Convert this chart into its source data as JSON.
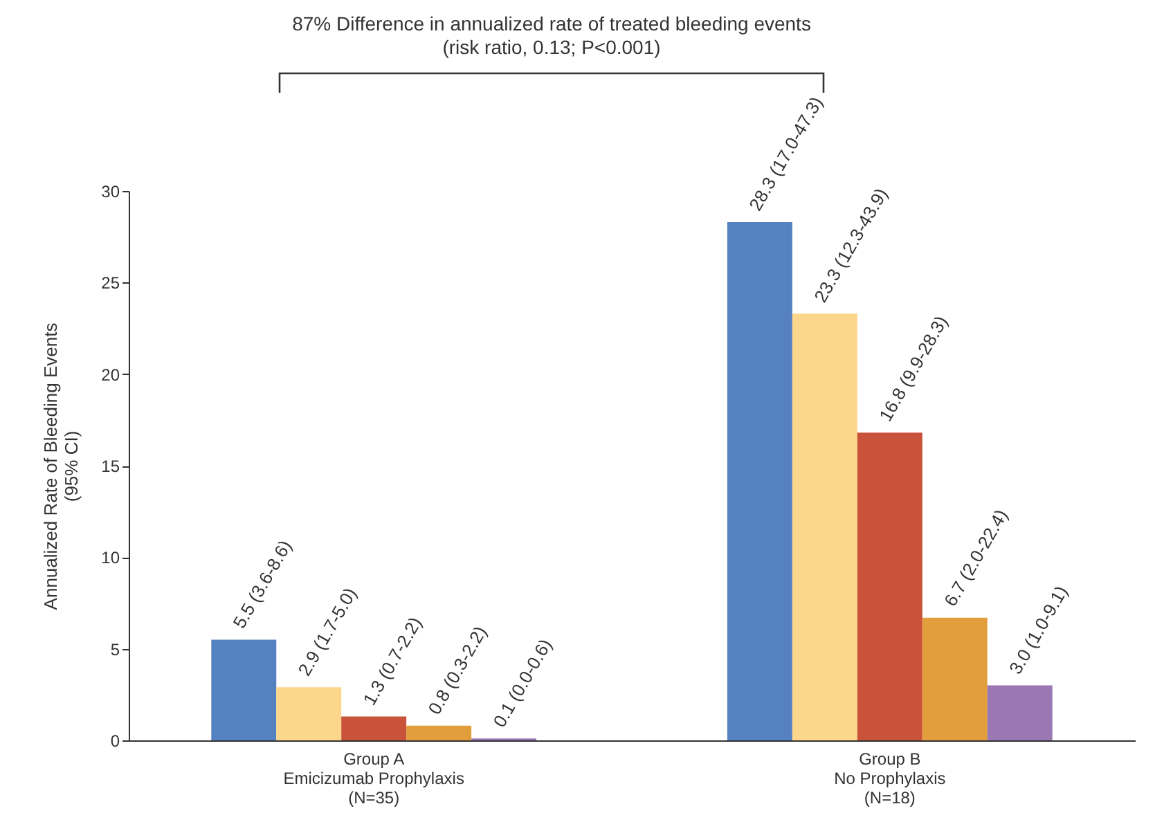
{
  "chart_data": {
    "type": "bar",
    "title": "87% Difference in annualized rate of treated bleeding events",
    "subtitle": "(risk ratio, 0.13; P<0.001)",
    "ylabel": "Annualized Rate of Bleeding Events\n(95% CI)",
    "categories": [
      "Group A\nEmicizumab Prophylaxis\n(N=35)",
      "Group B\nNo Prophylaxis\n(N=18)"
    ],
    "series": [
      {
        "color": "#5581c1",
        "values": [
          5.5,
          28.3
        ],
        "value_labels": [
          "5.5 (3.6-8.6)",
          "28.3 (17.0-47.3)"
        ]
      },
      {
        "color": "#fcd68b",
        "values": [
          2.9,
          23.3
        ],
        "value_labels": [
          "2.9 (1.7-5.0)",
          "23.3 (12.3-43.9)"
        ]
      },
      {
        "color": "#c9523a",
        "values": [
          1.3,
          16.8
        ],
        "value_labels": [
          "1.3 (0.7-2.2)",
          "16.8 (9.9-28.3)"
        ]
      },
      {
        "color": "#e29e3d",
        "values": [
          0.8,
          6.7
        ],
        "value_labels": [
          "0.8 (0.3-2.2)",
          "6.7 (2.0-22.4)"
        ]
      },
      {
        "color": "#9b77b3",
        "values": [
          0.1,
          3.0
        ],
        "value_labels": [
          "0.1 (0.0-0.6)",
          "3.0 (1.0-9.1)"
        ]
      }
    ],
    "ylim": [
      0,
      30
    ],
    "yticks": [
      0,
      5,
      10,
      15,
      20,
      25,
      30
    ],
    "grid": false,
    "legend": false
  }
}
